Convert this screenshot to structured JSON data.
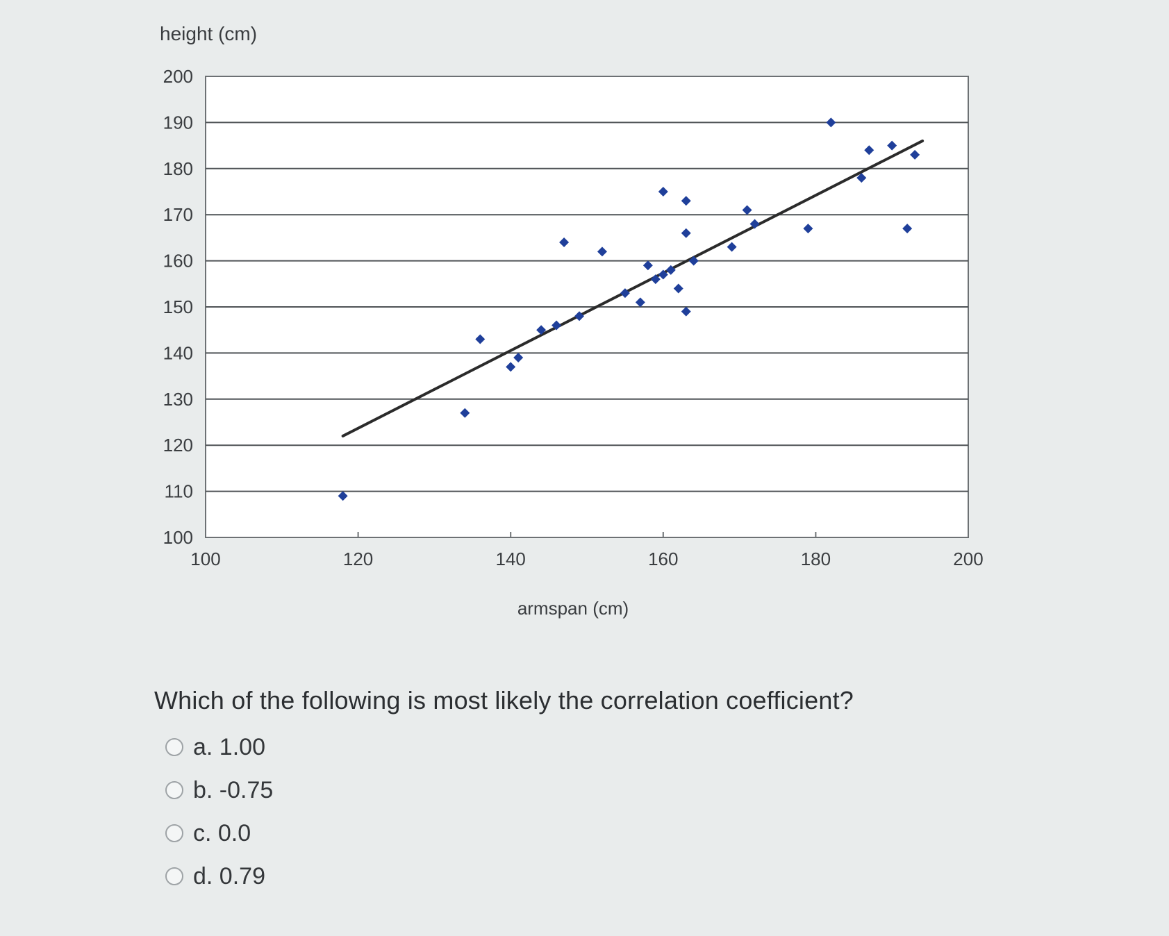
{
  "chart_data": {
    "type": "scatter",
    "ylabel": "height (cm)",
    "xlabel": "armspan (cm)",
    "xlim": [
      100,
      200
    ],
    "ylim": [
      100,
      200
    ],
    "x_ticks": [
      "100",
      "120",
      "140",
      "160",
      "180",
      "200"
    ],
    "y_ticks": [
      "200",
      "190",
      "180",
      "170",
      "160",
      "150",
      "140",
      "130",
      "120",
      "110",
      "100"
    ],
    "grid": "horizontal",
    "legend": "none",
    "marker": "diamond",
    "point_color": "#1f3f9a",
    "trendline_color": "#2b2b2b",
    "points": [
      {
        "x": 118,
        "y": 109
      },
      {
        "x": 134,
        "y": 127
      },
      {
        "x": 136,
        "y": 143
      },
      {
        "x": 140,
        "y": 137
      },
      {
        "x": 141,
        "y": 139
      },
      {
        "x": 144,
        "y": 145
      },
      {
        "x": 146,
        "y": 146
      },
      {
        "x": 147,
        "y": 164
      },
      {
        "x": 149,
        "y": 148
      },
      {
        "x": 152,
        "y": 162
      },
      {
        "x": 155,
        "y": 153
      },
      {
        "x": 157,
        "y": 151
      },
      {
        "x": 158,
        "y": 159
      },
      {
        "x": 159,
        "y": 156
      },
      {
        "x": 160,
        "y": 175
      },
      {
        "x": 160,
        "y": 157
      },
      {
        "x": 161,
        "y": 158
      },
      {
        "x": 162,
        "y": 154
      },
      {
        "x": 163,
        "y": 149
      },
      {
        "x": 163,
        "y": 166
      },
      {
        "x": 163,
        "y": 173
      },
      {
        "x": 164,
        "y": 160
      },
      {
        "x": 169,
        "y": 163
      },
      {
        "x": 171,
        "y": 171
      },
      {
        "x": 172,
        "y": 168
      },
      {
        "x": 179,
        "y": 167
      },
      {
        "x": 182,
        "y": 190
      },
      {
        "x": 186,
        "y": 178
      },
      {
        "x": 187,
        "y": 184
      },
      {
        "x": 190,
        "y": 185
      },
      {
        "x": 192,
        "y": 167
      },
      {
        "x": 193,
        "y": 183
      }
    ],
    "trendline": {
      "x": [
        118,
        194
      ],
      "y": [
        122,
        186
      ]
    }
  },
  "question": {
    "text": "Which of the following is most likely the correlation coefficient?",
    "options": [
      {
        "label": "a. 1.00"
      },
      {
        "label": "b. -0.75"
      },
      {
        "label": "c. 0.0"
      },
      {
        "label": "d. 0.79"
      }
    ]
  }
}
